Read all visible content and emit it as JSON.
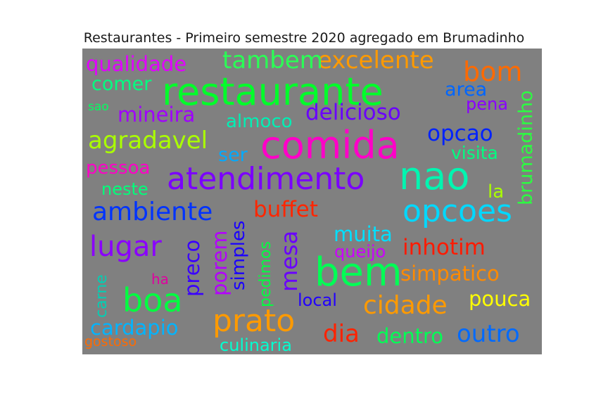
{
  "chart_data": {
    "type": "wordcloud",
    "title": "Restaurantes - Primeiro semestre 2020 agregado em Brumadinho",
    "words": [
      {
        "text": "restaurante",
        "color": "#00ff2a"
      },
      {
        "text": "comida",
        "color": "#ff00c8"
      },
      {
        "text": "nao",
        "color": "#00f5b0"
      },
      {
        "text": "atendimento",
        "color": "#7b00ff"
      },
      {
        "text": "bem",
        "color": "#00ff55"
      },
      {
        "text": "prato",
        "color": "#ff9a00"
      },
      {
        "text": "opcoes",
        "color": "#00d8ff"
      },
      {
        "text": "lugar",
        "color": "#8a00ff"
      },
      {
        "text": "boa",
        "color": "#00ff40"
      },
      {
        "text": "ambiente",
        "color": "#0033ff"
      },
      {
        "text": "excelente",
        "color": "#ff9a00"
      },
      {
        "text": "tambem",
        "color": "#2aff55"
      },
      {
        "text": "bom",
        "color": "#ff6a00"
      },
      {
        "text": "qualidade",
        "color": "#e200ff"
      },
      {
        "text": "delicioso",
        "color": "#6a00ff"
      },
      {
        "text": "agradavel",
        "color": "#aaff00"
      },
      {
        "text": "mineira",
        "color": "#a000ff"
      },
      {
        "text": "cidade",
        "color": "#ff9a00"
      },
      {
        "text": "opcao",
        "color": "#0022ff"
      },
      {
        "text": "brumadinho",
        "color": "#2aff40"
      },
      {
        "text": "buffet",
        "color": "#ff2600"
      },
      {
        "text": "inhotim",
        "color": "#ff1a00"
      },
      {
        "text": "simpatico",
        "color": "#ff8a00"
      },
      {
        "text": "outro",
        "color": "#006aff"
      },
      {
        "text": "dia",
        "color": "#ff2200"
      },
      {
        "text": "cardapio",
        "color": "#00b4ff"
      },
      {
        "text": "mesa",
        "color": "#6a00ff"
      },
      {
        "text": "preco",
        "color": "#3a00ff"
      },
      {
        "text": "porem",
        "color": "#b400ff"
      },
      {
        "text": "simples",
        "color": "#1a00ff"
      },
      {
        "text": "area",
        "color": "#0066ff"
      },
      {
        "text": "pena",
        "color": "#8a00ff"
      },
      {
        "text": "almoco",
        "color": "#00f0b4"
      },
      {
        "text": "comer",
        "color": "#00ff80"
      },
      {
        "text": "pessoa",
        "color": "#ff00c8"
      },
      {
        "text": "muita",
        "color": "#00e0ff"
      },
      {
        "text": "visita",
        "color": "#00ff80"
      },
      {
        "text": "ser",
        "color": "#00aaff"
      },
      {
        "text": "neste",
        "color": "#00ff7a"
      },
      {
        "text": "la",
        "color": "#aaff00"
      },
      {
        "text": "pouca",
        "color": "#ffff00"
      },
      {
        "text": "dentro",
        "color": "#00ff55"
      },
      {
        "text": "culinaria",
        "color": "#00ffd0"
      },
      {
        "text": "carne",
        "color": "#00d0b4"
      },
      {
        "text": "pedimos",
        "color": "#00ff40"
      },
      {
        "text": "queijo",
        "color": "#cc00ff"
      },
      {
        "text": "local",
        "color": "#2200ff"
      },
      {
        "text": "ha",
        "color": "#e000a0"
      },
      {
        "text": "sao",
        "color": "#00ff60"
      },
      {
        "text": "gostoso",
        "color": "#ff6a00"
      }
    ]
  }
}
